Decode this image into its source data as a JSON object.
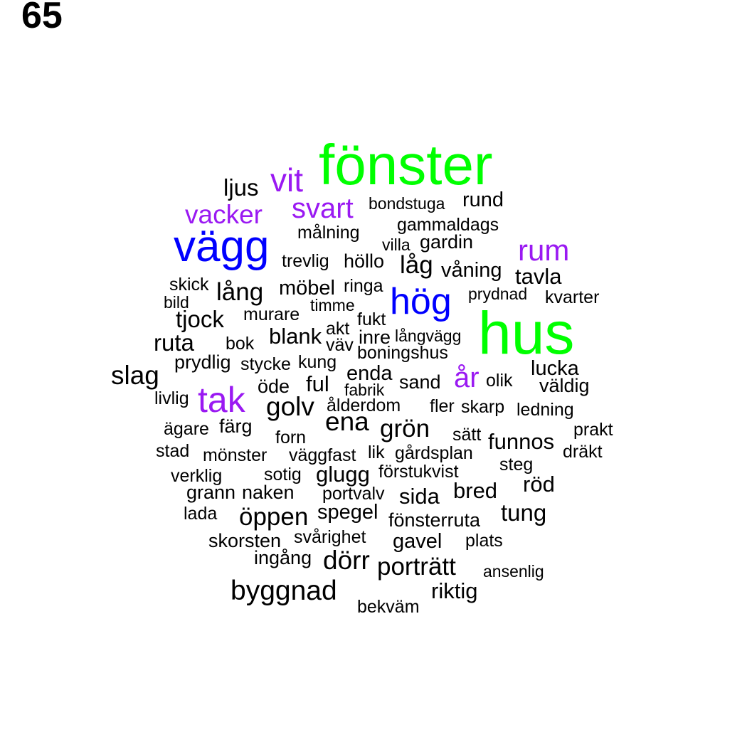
{
  "page_number": "65",
  "colors": {
    "green": "#00ff00",
    "blue": "#0000ff",
    "purple": "#9a19f2",
    "black": "#000000"
  },
  "words": [
    {
      "text": "fönster",
      "color": "green"
    },
    {
      "text": "hus",
      "color": "green"
    },
    {
      "text": "vägg",
      "color": "blue"
    },
    {
      "text": "hög",
      "color": "blue"
    },
    {
      "text": "vit",
      "color": "purple"
    },
    {
      "text": "svart",
      "color": "purple"
    },
    {
      "text": "vacker",
      "color": "purple"
    },
    {
      "text": "rum",
      "color": "purple"
    },
    {
      "text": "tak",
      "color": "purple"
    },
    {
      "text": "år",
      "color": "purple"
    },
    {
      "text": "ljus",
      "color": "black"
    },
    {
      "text": "bondstuga",
      "color": "black"
    },
    {
      "text": "rund",
      "color": "black"
    },
    {
      "text": "gammaldags",
      "color": "black"
    },
    {
      "text": "målning",
      "color": "black"
    },
    {
      "text": "villa",
      "color": "black"
    },
    {
      "text": "gardin",
      "color": "black"
    },
    {
      "text": "trevlig",
      "color": "black"
    },
    {
      "text": "höllo",
      "color": "black"
    },
    {
      "text": "låg",
      "color": "black"
    },
    {
      "text": "våning",
      "color": "black"
    },
    {
      "text": "tavla",
      "color": "black"
    },
    {
      "text": "skick",
      "color": "black"
    },
    {
      "text": "lång",
      "color": "black"
    },
    {
      "text": "möbel",
      "color": "black"
    },
    {
      "text": "ringa",
      "color": "black"
    },
    {
      "text": "prydnad",
      "color": "black"
    },
    {
      "text": "kvarter",
      "color": "black"
    },
    {
      "text": "bild",
      "color": "black"
    },
    {
      "text": "timme",
      "color": "black"
    },
    {
      "text": "tjock",
      "color": "black"
    },
    {
      "text": "murare",
      "color": "black"
    },
    {
      "text": "fukt",
      "color": "black"
    },
    {
      "text": "akt",
      "color": "black"
    },
    {
      "text": "blank",
      "color": "black"
    },
    {
      "text": "inre",
      "color": "black"
    },
    {
      "text": "långvägg",
      "color": "black"
    },
    {
      "text": "ruta",
      "color": "black"
    },
    {
      "text": "bok",
      "color": "black"
    },
    {
      "text": "väv",
      "color": "black"
    },
    {
      "text": "boningshus",
      "color": "black"
    },
    {
      "text": "prydlig",
      "color": "black"
    },
    {
      "text": "stycke",
      "color": "black"
    },
    {
      "text": "kung",
      "color": "black"
    },
    {
      "text": "lucka",
      "color": "black"
    },
    {
      "text": "slag",
      "color": "black"
    },
    {
      "text": "enda",
      "color": "black"
    },
    {
      "text": "ful",
      "color": "black"
    },
    {
      "text": "sand",
      "color": "black"
    },
    {
      "text": "olik",
      "color": "black"
    },
    {
      "text": "väldig",
      "color": "black"
    },
    {
      "text": "öde",
      "color": "black"
    },
    {
      "text": "fabrik",
      "color": "black"
    },
    {
      "text": "livlig",
      "color": "black"
    },
    {
      "text": "golv",
      "color": "black"
    },
    {
      "text": "ålderdom",
      "color": "black"
    },
    {
      "text": "fler",
      "color": "black"
    },
    {
      "text": "skarp",
      "color": "black"
    },
    {
      "text": "ledning",
      "color": "black"
    },
    {
      "text": "ena",
      "color": "black"
    },
    {
      "text": "ägare",
      "color": "black"
    },
    {
      "text": "färg",
      "color": "black"
    },
    {
      "text": "grön",
      "color": "black"
    },
    {
      "text": "sätt",
      "color": "black"
    },
    {
      "text": "prakt",
      "color": "black"
    },
    {
      "text": "forn",
      "color": "black"
    },
    {
      "text": "funnos",
      "color": "black"
    },
    {
      "text": "stad",
      "color": "black"
    },
    {
      "text": "mönster",
      "color": "black"
    },
    {
      "text": "väggfast",
      "color": "black"
    },
    {
      "text": "lik",
      "color": "black"
    },
    {
      "text": "gårdsplan",
      "color": "black"
    },
    {
      "text": "dräkt",
      "color": "black"
    },
    {
      "text": "steg",
      "color": "black"
    },
    {
      "text": "verklig",
      "color": "black"
    },
    {
      "text": "sotig",
      "color": "black"
    },
    {
      "text": "glugg",
      "color": "black"
    },
    {
      "text": "förstukvist",
      "color": "black"
    },
    {
      "text": "röd",
      "color": "black"
    },
    {
      "text": "grann",
      "color": "black"
    },
    {
      "text": "naken",
      "color": "black"
    },
    {
      "text": "portvalv",
      "color": "black"
    },
    {
      "text": "bred",
      "color": "black"
    },
    {
      "text": "sida",
      "color": "black"
    },
    {
      "text": "lada",
      "color": "black"
    },
    {
      "text": "öppen",
      "color": "black"
    },
    {
      "text": "spegel",
      "color": "black"
    },
    {
      "text": "tung",
      "color": "black"
    },
    {
      "text": "fönsterruta",
      "color": "black"
    },
    {
      "text": "skorsten",
      "color": "black"
    },
    {
      "text": "svårighet",
      "color": "black"
    },
    {
      "text": "gavel",
      "color": "black"
    },
    {
      "text": "plats",
      "color": "black"
    },
    {
      "text": "ingång",
      "color": "black"
    },
    {
      "text": "dörr",
      "color": "black"
    },
    {
      "text": "porträtt",
      "color": "black"
    },
    {
      "text": "ansenlig",
      "color": "black"
    },
    {
      "text": "byggnad",
      "color": "black"
    },
    {
      "text": "riktig",
      "color": "black"
    },
    {
      "text": "bekväm",
      "color": "black"
    }
  ]
}
